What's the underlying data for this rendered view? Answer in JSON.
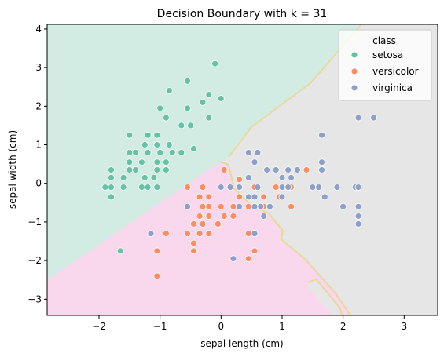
{
  "chart_data": {
    "type": "scatter",
    "title": "Decision Boundary with k = 31",
    "xlabel": "sepal length (cm)",
    "ylabel": "sepal width (cm)",
    "xlim": [
      -2.85,
      3.55
    ],
    "ylim": [
      -3.42,
      4.12
    ],
    "xticks": [
      -2,
      -1,
      0,
      1,
      2,
      3
    ],
    "yticks": [
      -3,
      -2,
      -1,
      0,
      1,
      2,
      3,
      4
    ],
    "legend": {
      "title": "class",
      "placement": "top-right"
    },
    "regions": [
      {
        "class": "setosa",
        "color": "#d2ece3"
      },
      {
        "class": "versicolor",
        "color": "#f9d7ec"
      },
      {
        "class": "virginica",
        "color": "#e6e6e6"
      }
    ],
    "boundary_color": "#e8d99a",
    "series": [
      {
        "name": "setosa",
        "color": "#66c2a5",
        "points": [
          [
            -0.1,
            3.1
          ],
          [
            -0.55,
            2.65
          ],
          [
            -0.2,
            2.3
          ],
          [
            -0.85,
            2.4
          ],
          [
            -0.3,
            2.1
          ],
          [
            0.0,
            2.2
          ],
          [
            -0.55,
            1.95
          ],
          [
            -1.0,
            1.95
          ],
          [
            -0.9,
            1.7
          ],
          [
            -0.2,
            1.7
          ],
          [
            -0.65,
            1.5
          ],
          [
            -0.5,
            1.5
          ],
          [
            -1.5,
            1.25
          ],
          [
            -1.2,
            1.25
          ],
          [
            -1.05,
            1.25
          ],
          [
            -0.85,
            1.0
          ],
          [
            -1.05,
            1.0
          ],
          [
            -1.25,
            1.0
          ],
          [
            -1.4,
            0.8
          ],
          [
            -1.5,
            0.8
          ],
          [
            -1.2,
            0.8
          ],
          [
            -1.0,
            0.8
          ],
          [
            -0.8,
            0.8
          ],
          [
            -0.65,
            0.8
          ],
          [
            -0.45,
            0.9
          ],
          [
            -1.05,
            0.55
          ],
          [
            -0.9,
            0.55
          ],
          [
            -1.3,
            0.55
          ],
          [
            -1.5,
            0.55
          ],
          [
            -1.05,
            0.35
          ],
          [
            -0.9,
            0.35
          ],
          [
            -1.5,
            0.35
          ],
          [
            -1.4,
            0.35
          ],
          [
            -1.8,
            0.35
          ],
          [
            -1.25,
            0.15
          ],
          [
            -1.1,
            0.15
          ],
          [
            -1.6,
            0.15
          ],
          [
            -1.8,
            0.15
          ],
          [
            -1.2,
            -0.1
          ],
          [
            -1.05,
            -0.1
          ],
          [
            -1.3,
            -0.1
          ],
          [
            -1.6,
            -0.1
          ],
          [
            -1.8,
            -0.1
          ],
          [
            -1.9,
            -0.1
          ],
          [
            -1.8,
            -0.35
          ],
          [
            -1.65,
            -1.75
          ]
        ]
      },
      {
        "name": "versicolor",
        "color": "#fc8d62",
        "points": [
          [
            1.4,
            0.35
          ],
          [
            0.05,
            0.35
          ],
          [
            0.3,
            0.1
          ],
          [
            0.15,
            -0.1
          ],
          [
            -0.55,
            -0.1
          ],
          [
            -0.3,
            -0.1
          ],
          [
            0.55,
            -0.1
          ],
          [
            0.9,
            -0.1
          ],
          [
            1.15,
            -0.1
          ],
          [
            -0.35,
            -0.35
          ],
          [
            -0.2,
            -0.35
          ],
          [
            0.3,
            -0.35
          ],
          [
            0.45,
            -0.35
          ],
          [
            0.7,
            -0.35
          ],
          [
            0.95,
            -0.35
          ],
          [
            -0.3,
            -0.6
          ],
          [
            -0.2,
            -0.6
          ],
          [
            0.0,
            -0.6
          ],
          [
            0.2,
            -0.6
          ],
          [
            0.45,
            -0.6
          ],
          [
            0.55,
            -0.6
          ],
          [
            0.7,
            -0.6
          ],
          [
            1.15,
            -0.6
          ],
          [
            -0.35,
            -0.85
          ],
          [
            -0.2,
            -0.85
          ],
          [
            0.05,
            -0.85
          ],
          [
            0.2,
            -0.85
          ],
          [
            -0.45,
            -1.05
          ],
          [
            -0.3,
            -1.05
          ],
          [
            -0.05,
            -1.05
          ],
          [
            -0.55,
            -1.3
          ],
          [
            -0.35,
            -1.3
          ],
          [
            -0.2,
            -1.3
          ],
          [
            -0.9,
            -1.3
          ],
          [
            0.45,
            -1.3
          ],
          [
            -0.45,
            -1.55
          ],
          [
            -1.05,
            -1.75
          ],
          [
            -0.45,
            -1.75
          ],
          [
            0.55,
            -1.75
          ],
          [
            0.45,
            -1.95
          ],
          [
            -1.05,
            -2.4
          ]
        ]
      },
      {
        "name": "virginica",
        "color": "#8da0cb",
        "points": [
          [
            2.25,
            1.7
          ],
          [
            2.5,
            1.7
          ],
          [
            1.65,
            1.25
          ],
          [
            1.65,
            0.55
          ],
          [
            0.45,
            0.8
          ],
          [
            0.6,
            0.8
          ],
          [
            0.55,
            0.55
          ],
          [
            0.75,
            0.35
          ],
          [
            0.9,
            0.35
          ],
          [
            1.1,
            0.35
          ],
          [
            1.25,
            0.35
          ],
          [
            1.65,
            0.35
          ],
          [
            1.15,
            0.15
          ],
          [
            1.0,
            0.15
          ],
          [
            0.45,
            0.15
          ],
          [
            0.0,
            -0.1
          ],
          [
            0.15,
            -0.1
          ],
          [
            0.3,
            -0.1
          ],
          [
            0.6,
            -0.1
          ],
          [
            1.0,
            -0.1
          ],
          [
            1.1,
            -0.1
          ],
          [
            1.5,
            -0.1
          ],
          [
            1.6,
            -0.1
          ],
          [
            1.9,
            -0.1
          ],
          [
            2.2,
            -0.1
          ],
          [
            2.25,
            -0.1
          ],
          [
            0.45,
            -0.35
          ],
          [
            0.55,
            -0.35
          ],
          [
            1.0,
            -0.35
          ],
          [
            1.7,
            -0.35
          ],
          [
            0.3,
            -0.6
          ],
          [
            0.55,
            -0.6
          ],
          [
            0.65,
            -0.6
          ],
          [
            0.8,
            -0.6
          ],
          [
            2.0,
            -0.6
          ],
          [
            2.25,
            -0.6
          ],
          [
            -0.55,
            -0.6
          ],
          [
            2.25,
            -0.85
          ],
          [
            0.7,
            -0.85
          ],
          [
            2.25,
            -1.05
          ],
          [
            -1.15,
            -1.3
          ],
          [
            0.55,
            -1.3
          ],
          [
            0.2,
            -1.95
          ]
        ]
      }
    ]
  }
}
